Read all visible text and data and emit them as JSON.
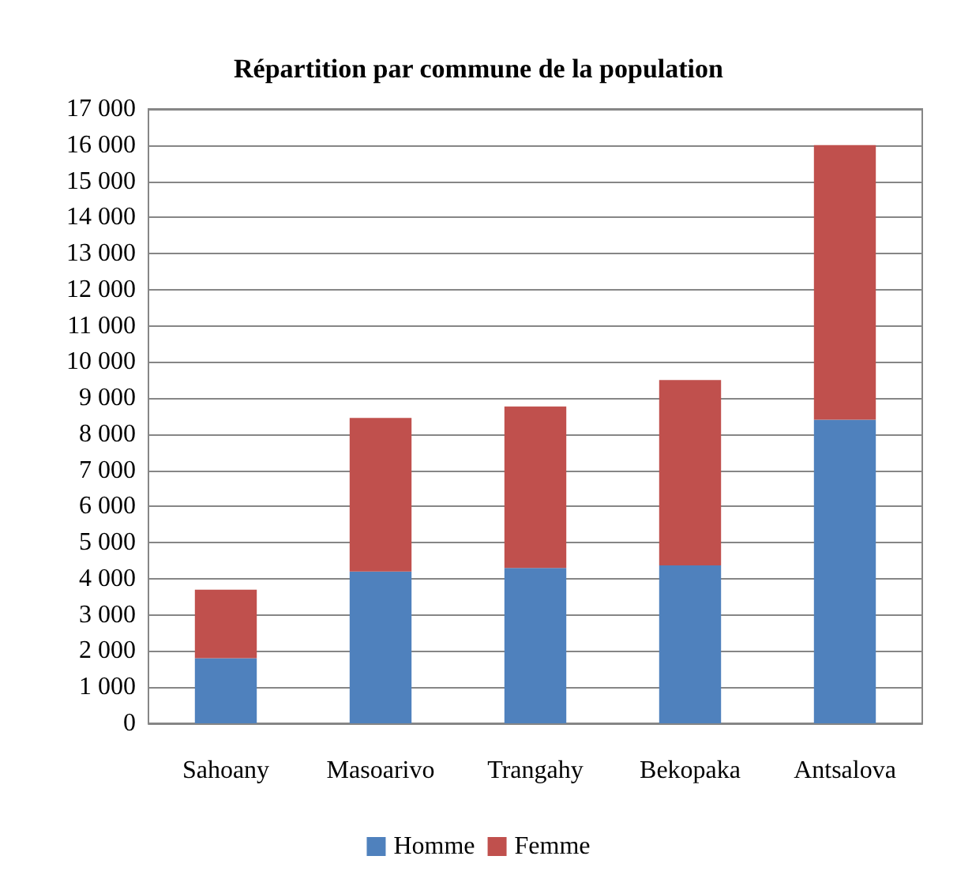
{
  "chart_data": {
    "type": "bar",
    "stacked": true,
    "title": "Répartition par commune de la population",
    "categories": [
      "Sahoany",
      "Masoarivo",
      "Trangahy",
      "Bekopaka",
      "Antsalova"
    ],
    "series": [
      {
        "name": "Homme",
        "color": "#4f81bd",
        "values": [
          1800,
          4200,
          4300,
          4370,
          8400
        ]
      },
      {
        "name": "Femme",
        "color": "#c0504d",
        "values": [
          1900,
          4250,
          4470,
          5130,
          7600
        ]
      }
    ],
    "ylim": [
      0,
      17000
    ],
    "yticks": [
      0,
      {
        "value": 1000,
        "label": "1 000"
      },
      {
        "value": 2000,
        "label": "2 000"
      },
      {
        "value": 3000,
        "label": "3 000"
      },
      {
        "value": 4000,
        "label": "4 000"
      },
      {
        "value": 5000,
        "label": "5 000"
      },
      {
        "value": 6000,
        "label": "6 000"
      },
      {
        "value": 7000,
        "label": "7 000"
      },
      {
        "value": 8000,
        "label": "8 000"
      },
      {
        "value": 9000,
        "label": "9 000"
      },
      {
        "value": 10000,
        "label": "10 000"
      },
      {
        "value": 11000,
        "label": "11 000"
      },
      {
        "value": 12000,
        "label": "12 000"
      },
      {
        "value": 13000,
        "label": "13 000"
      },
      {
        "value": 14000,
        "label": "14 000"
      },
      {
        "value": 15000,
        "label": "15 000"
      },
      {
        "value": 16000,
        "label": "16 000"
      },
      {
        "value": 17000,
        "label": "17 000"
      }
    ],
    "grid": "y",
    "legend": "bottom"
  }
}
